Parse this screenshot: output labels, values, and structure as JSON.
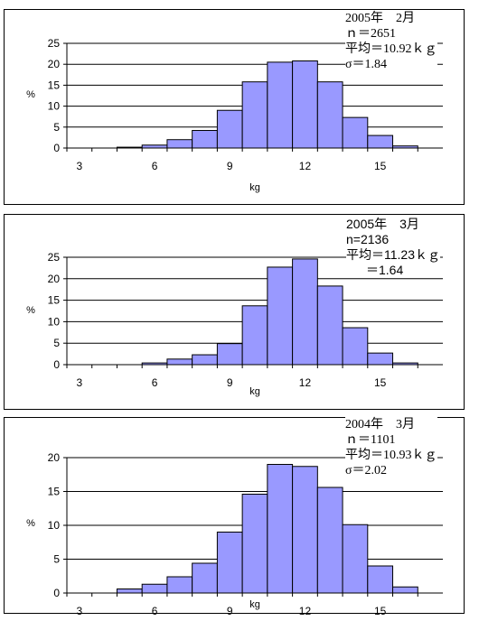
{
  "chart_data": [
    {
      "type": "bar",
      "title_lines": [
        "2005年　2月",
        "ｎ＝2651",
        "平均＝10.92ｋｇ",
        "σ＝1.84"
      ],
      "title_font": "serif",
      "xlabel": "kg",
      "ylabel": "%",
      "x_ticks": [
        3,
        6,
        9,
        12,
        15
      ],
      "y_ticks": [
        0,
        5,
        10,
        15,
        20,
        25
      ],
      "ylim": [
        0,
        25
      ],
      "categories": [
        3,
        4,
        5,
        6,
        7,
        8,
        9,
        10,
        11,
        12,
        13,
        14,
        15,
        16
      ],
      "values": [
        0,
        0,
        0.2,
        0.7,
        2.0,
        4.2,
        9.0,
        15.8,
        20.5,
        20.8,
        15.8,
        7.3,
        3.0,
        0.5
      ],
      "grid": true,
      "bar_color": "#9999ff"
    },
    {
      "type": "bar",
      "title_lines": [
        "2005年　3月",
        "n=2136",
        "平均＝11.23ｋｇ",
        "＝1.64"
      ],
      "title_font": "sans",
      "xlabel": "kg",
      "ylabel": "%",
      "x_ticks": [
        3,
        6,
        9,
        12,
        15
      ],
      "y_ticks": [
        0,
        5,
        10,
        15,
        20,
        25
      ],
      "ylim": [
        0,
        25
      ],
      "categories": [
        3,
        4,
        5,
        6,
        7,
        8,
        9,
        10,
        11,
        12,
        13,
        14,
        15,
        16
      ],
      "values": [
        0,
        0,
        0,
        0.4,
        1.3,
        2.3,
        4.9,
        13.7,
        22.7,
        24.6,
        18.3,
        8.6,
        2.7,
        0.4
      ],
      "grid": true,
      "bar_color": "#9999ff"
    },
    {
      "type": "bar",
      "title_lines": [
        "2004年　3月",
        "ｎ＝1101",
        "平均＝10.93ｋｇ",
        "σ＝2.02"
      ],
      "title_font": "serif",
      "xlabel": "kg",
      "ylabel": "%",
      "x_ticks": [
        3,
        6,
        9,
        12,
        15
      ],
      "y_ticks": [
        0,
        5,
        10,
        15,
        20
      ],
      "ylim": [
        0,
        20
      ],
      "categories": [
        3,
        4,
        5,
        6,
        7,
        8,
        9,
        10,
        11,
        12,
        13,
        14,
        15,
        16
      ],
      "values": [
        0,
        0,
        0.6,
        1.3,
        2.4,
        4.4,
        9.0,
        14.6,
        19.0,
        18.7,
        15.6,
        10.1,
        4.0,
        0.9
      ],
      "grid": true,
      "bar_color": "#9999ff"
    }
  ]
}
